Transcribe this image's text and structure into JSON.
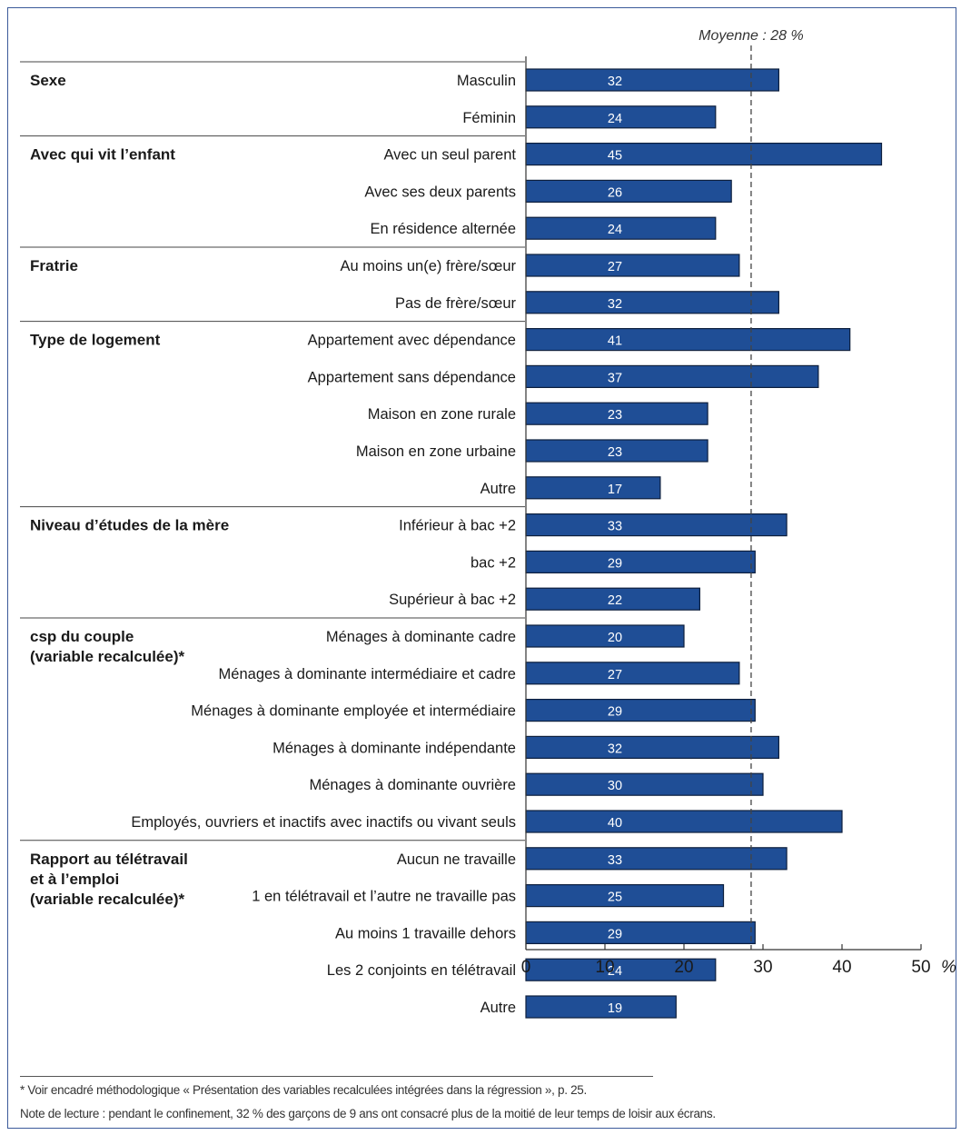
{
  "chart_data": {
    "type": "bar",
    "orientation": "horizontal",
    "unit": "%",
    "xlim": [
      0,
      50
    ],
    "xticks": [
      0,
      10,
      20,
      30,
      40,
      50
    ],
    "reference_line": {
      "label": "Moyenne : 28 %",
      "value": 28.5
    },
    "bar_color": "#1f4e96",
    "groups": [
      {
        "name": "Sexe",
        "name_lines": [
          "Sexe"
        ],
        "items": [
          {
            "label": "Masculin",
            "value": 32
          },
          {
            "label": "Féminin",
            "value": 24
          }
        ]
      },
      {
        "name": "Avec qui vit l’enfant",
        "name_lines": [
          "Avec qui vit l’enfant"
        ],
        "items": [
          {
            "label": "Avec un seul parent",
            "value": 45
          },
          {
            "label": "Avec ses deux parents",
            "value": 26
          },
          {
            "label": "En résidence alternée",
            "value": 24
          }
        ]
      },
      {
        "name": "Fratrie",
        "name_lines": [
          "Fratrie"
        ],
        "items": [
          {
            "label": "Au moins un(e) frère/sœur",
            "value": 27
          },
          {
            "label": "Pas de frère/sœur",
            "value": 32
          }
        ]
      },
      {
        "name": "Type de logement",
        "name_lines": [
          "Type de logement"
        ],
        "items": [
          {
            "label": "Appartement avec dépendance",
            "value": 41
          },
          {
            "label": "Appartement sans dépendance",
            "value": 37
          },
          {
            "label": "Maison en zone rurale",
            "value": 23
          },
          {
            "label": "Maison en zone urbaine",
            "value": 23
          },
          {
            "label": "Autre",
            "value": 17
          }
        ]
      },
      {
        "name": "Niveau d’études de la mère",
        "name_lines": [
          "Niveau d’études de la mère"
        ],
        "items": [
          {
            "label": "Inférieur à bac +2",
            "value": 33
          },
          {
            "label": "bac +2",
            "value": 29
          },
          {
            "label": "Supérieur à bac +2",
            "value": 22
          }
        ]
      },
      {
        "name": "CSP du couple (variable recalculée)*",
        "name_lines": [
          "csp du couple",
          "(variable recalculée)*"
        ],
        "items": [
          {
            "label": "Ménages à dominante cadre",
            "value": 20
          },
          {
            "label": "Ménages à dominante intermédiaire et cadre",
            "value": 27
          },
          {
            "label": "Ménages à dominante employée et intermédiaire",
            "value": 29
          },
          {
            "label": "Ménages à dominante indépendante",
            "value": 32
          },
          {
            "label": "Ménages à dominante ouvrière",
            "value": 30
          },
          {
            "label": "Employés, ouvriers et inactifs avec inactifs ou vivant seuls",
            "value": 40
          }
        ]
      },
      {
        "name": "Rapport au télétravail et à l’emploi (variable recalculée)*",
        "name_lines": [
          "Rapport au télétravail",
          "et à l’emploi",
          "(variable recalculée)*"
        ],
        "items": [
          {
            "label": "Aucun ne travaille",
            "value": 33
          },
          {
            "label": "1 en télétravail et l’autre ne travaille pas",
            "value": 25
          },
          {
            "label": "Au moins 1 travaille dehors",
            "value": 29
          },
          {
            "label": "Les 2 conjoints en télétravail",
            "value": 24
          },
          {
            "label": "Autre",
            "value": 19
          }
        ]
      }
    ]
  },
  "notes": {
    "footnote": "* Voir encadré méthodologique « Présentation des variables recalculées intégrées dans la régression », p. 25.",
    "reading_note": "Note de lecture : pendant le confinement, 32 % des garçons de 9 ans ont consacré plus de la moitié de leur temps de loisir aux écrans."
  }
}
